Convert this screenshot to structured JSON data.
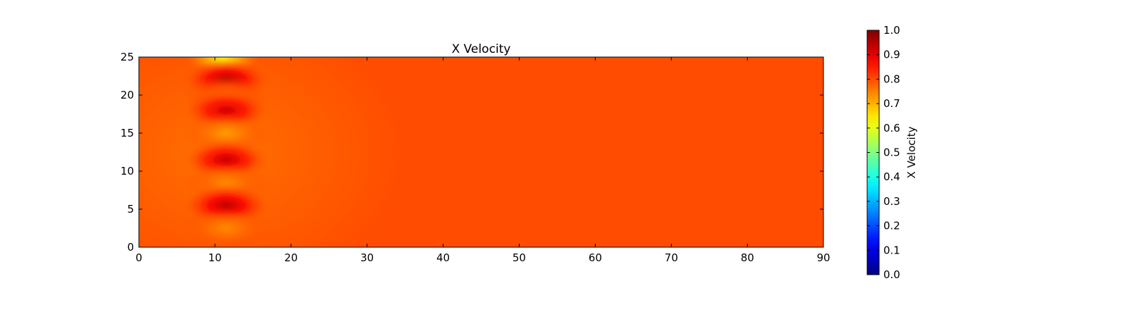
{
  "chart_data": {
    "type": "heatmap",
    "title": "X Velocity",
    "xlabel": "",
    "ylabel": "",
    "xlim": [
      0,
      90
    ],
    "ylim": [
      0,
      25
    ],
    "x_ticks": [
      "0",
      "10",
      "20",
      "30",
      "40",
      "50",
      "60",
      "70",
      "80",
      "90"
    ],
    "y_ticks": [
      "0",
      "5",
      "10",
      "15",
      "20",
      "25"
    ],
    "colormap": "jet",
    "colorbar": {
      "label": "X Velocity",
      "range": [
        0,
        1
      ],
      "ticks": [
        "0.0",
        "0.1",
        "0.2",
        "0.3",
        "0.4",
        "0.5",
        "0.6",
        "0.7",
        "0.8",
        "0.9",
        "1.0"
      ]
    },
    "field": {
      "background_value": 0.8,
      "features": [
        {
          "x": 11,
          "y": 25,
          "value": 0.62
        },
        {
          "x": 11.5,
          "y": 22,
          "value": 0.96
        },
        {
          "x": 11.5,
          "y": 20,
          "value": 0.78
        },
        {
          "x": 11.5,
          "y": 18,
          "value": 0.92
        },
        {
          "x": 11.5,
          "y": 15,
          "value": 0.72
        },
        {
          "x": 11.5,
          "y": 11.5,
          "value": 0.93
        },
        {
          "x": 11.5,
          "y": 8.5,
          "value": 0.74
        },
        {
          "x": 11.5,
          "y": 5.5,
          "value": 0.94
        },
        {
          "x": 11.5,
          "y": 2.5,
          "value": 0.74
        }
      ]
    }
  }
}
